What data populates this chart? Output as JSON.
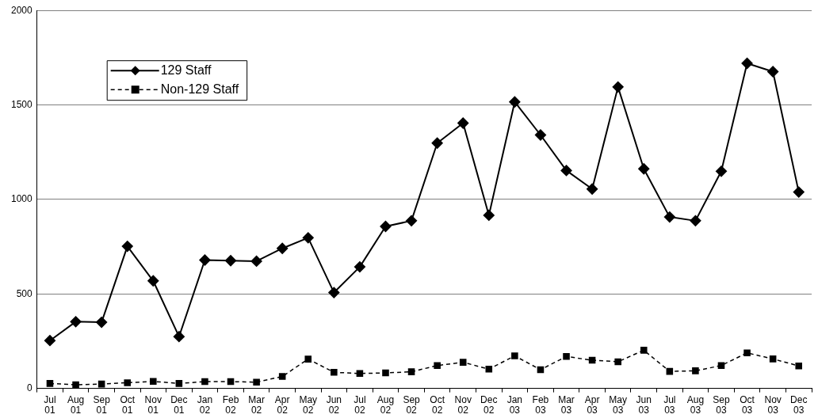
{
  "chart_data": {
    "type": "line",
    "categories": [
      "Jul 01",
      "Aug 01",
      "Sep 01",
      "Oct 01",
      "Nov 01",
      "Dec 01",
      "Jan 02",
      "Feb 02",
      "Mar 02",
      "Apr 02",
      "May 02",
      "Jun 02",
      "Jul 02",
      "Aug 02",
      "Sep 02",
      "Oct 02",
      "Nov 02",
      "Dec 02",
      "Jan 03",
      "Feb 03",
      "Mar 03",
      "Apr 03",
      "May 03",
      "Jun 03",
      "Jul 03",
      "Aug 03",
      "Sep 03",
      "Oct 03",
      "Nov 03",
      "Dec 03"
    ],
    "series": [
      {
        "name": "129 Staff",
        "color": "#000000",
        "marker": "diamond",
        "line_style": "solid",
        "values": [
          253,
          353,
          350,
          752,
          569,
          274,
          679,
          676,
          673,
          741,
          797,
          507,
          643,
          857,
          887,
          1298,
          1404,
          916,
          1516,
          1341,
          1153,
          1055,
          1595,
          1162,
          907,
          887,
          1149,
          1720,
          1676,
          1039
        ]
      },
      {
        "name": "Non-129 Staff",
        "color": "#000000",
        "marker": "square",
        "line_style": "dashed",
        "values": [
          26,
          19,
          23,
          30,
          37,
          26,
          36,
          36,
          33,
          63,
          155,
          85,
          79,
          82,
          88,
          121,
          138,
          102,
          172,
          99,
          169,
          149,
          141,
          202,
          90,
          93,
          121,
          188,
          156,
          119
        ]
      }
    ],
    "ylim": [
      0,
      2000
    ],
    "yticks": [
      0,
      500,
      1000,
      1500,
      2000
    ],
    "grid": "y",
    "legend": "top left"
  }
}
